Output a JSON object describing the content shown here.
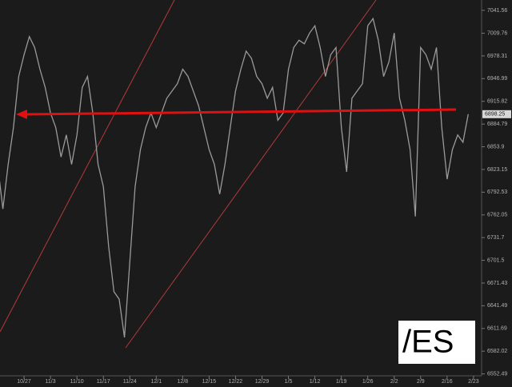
{
  "chart_data": {
    "type": "line",
    "color": "#9a9a9a",
    "log_scale": true,
    "grid": false,
    "categories": [
      null,
      null,
      null,
      null,
      null,
      "10/27",
      null,
      null,
      null,
      null,
      "11/3",
      null,
      null,
      null,
      null,
      "11/10",
      null,
      null,
      null,
      null,
      "11/17",
      null,
      null,
      null,
      null,
      "11/24",
      null,
      null,
      null,
      null,
      "12/1",
      null,
      null,
      null,
      null,
      "12/8",
      null,
      null,
      null,
      null,
      "12/15",
      null,
      null,
      null,
      null,
      "12/22",
      null,
      null,
      null,
      null,
      "12/29",
      null,
      null,
      null,
      null,
      "1/5",
      null,
      null,
      null,
      null,
      "1/12",
      null,
      null,
      null,
      null,
      "1/19",
      null,
      null,
      null,
      null,
      "1/26",
      null,
      null,
      null,
      null,
      "2/2",
      null,
      null,
      null,
      null,
      "2/9",
      null,
      null,
      null,
      null,
      "2/16",
      null,
      null,
      null,
      null,
      "2/23"
    ],
    "values": [
      6830,
      6770,
      6830,
      6880,
      6950,
      6980,
      7005,
      6990,
      6960,
      6935,
      6900,
      6880,
      6840,
      6870,
      6830,
      6870,
      6935,
      6950,
      6900,
      6830,
      6800,
      6720,
      6660,
      6650,
      6600,
      6700,
      6800,
      6850,
      6880,
      6900,
      6880,
      6900,
      6920,
      6930,
      6940,
      6960,
      6950,
      6930,
      6910,
      6880,
      6850,
      6830,
      6790,
      6830,
      6880,
      6930,
      6960,
      6985,
      6975,
      6950,
      6940,
      6920,
      6935,
      6890,
      6900,
      6960,
      6990,
      7000,
      6995,
      7010,
      7020,
      6990,
      6950,
      6980,
      6990,
      6880,
      6820,
      6920,
      6930,
      6940,
      7020,
      7030,
      7000,
      6950,
      6970,
      7010,
      6920,
      6890,
      6850,
      6760,
      6990,
      6980,
      6960,
      6990,
      6880,
      6810,
      6850,
      6870,
      6860,
      6898.25,
      null
    ],
    "ylim": [
      6550,
      7056
    ],
    "yticks": [
      7041.56,
      7009.76,
      6978.31,
      6946.99,
      6915.82,
      6884.79,
      6853.9,
      6823.15,
      6792.53,
      6762.05,
      6731.7,
      6701.5,
      6671.43,
      6641.49,
      6611.69,
      6582.02,
      6552.49
    ],
    "symbol": "/ES"
  }
}
